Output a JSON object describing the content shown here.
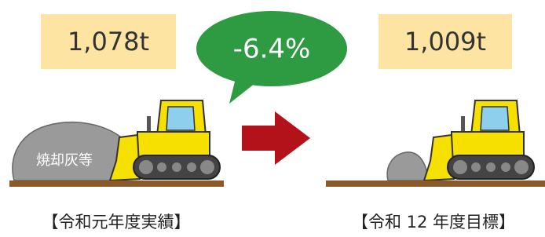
{
  "left": {
    "amount": "1,078t",
    "pile_label": "焼却灰等",
    "caption": "【令和元年度実績】"
  },
  "change": "-6.4%",
  "right": {
    "amount": "1,009t",
    "caption": "【令和 12 年度目標】"
  }
}
